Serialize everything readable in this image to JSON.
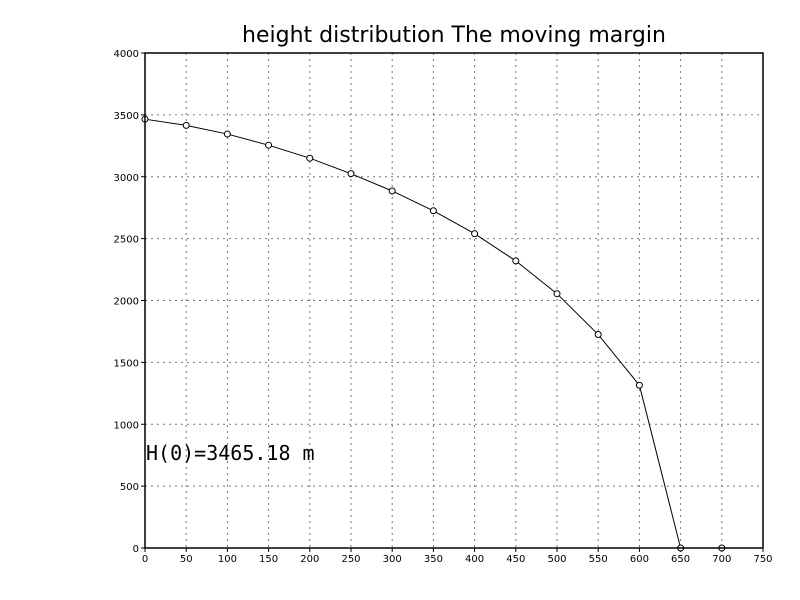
{
  "chart_data": {
    "type": "line",
    "title": "height distribution The moving margin",
    "xlabel": "",
    "ylabel": "",
    "xlim": [
      0,
      750
    ],
    "ylim": [
      0,
      4000
    ],
    "xticks": [
      0,
      50,
      100,
      150,
      200,
      250,
      300,
      350,
      400,
      450,
      500,
      550,
      600,
      650,
      700,
      750
    ],
    "yticks": [
      0,
      500,
      1000,
      1500,
      2000,
      2500,
      3000,
      3500,
      4000
    ],
    "grid": true,
    "annotation": "H(0)=3465.18 m",
    "series": [
      {
        "x": [
          0,
          50,
          100,
          150,
          200,
          250,
          300,
          350,
          400,
          450,
          500,
          550,
          600,
          650,
          700
        ],
        "y": [
          3465.18,
          3415,
          3345,
          3255,
          3150,
          3025,
          2885,
          2725,
          2540,
          2320,
          2055,
          1725,
          1315,
          0,
          0
        ],
        "color": "#000000",
        "marker": "open-circle"
      }
    ]
  }
}
